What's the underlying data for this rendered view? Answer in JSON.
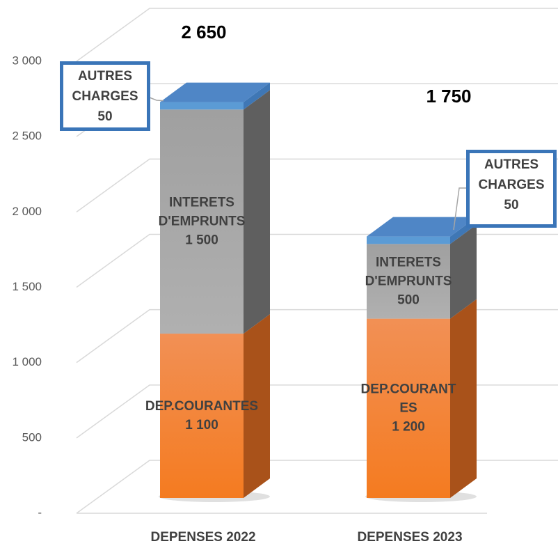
{
  "chart_data": {
    "type": "bar3d_stacked",
    "categories": [
      "DEPENSES 2022",
      "DEPENSES 2023"
    ],
    "series": [
      {
        "name": "DEP.COURANTES",
        "color": "#f47b20",
        "values": [
          1100,
          1200
        ],
        "value_labels": [
          "1 100",
          "1 200"
        ]
      },
      {
        "name": "INTERETS D'EMPRUNTS",
        "color": "#a6a6a6",
        "values": [
          1500,
          500
        ],
        "value_labels": [
          "1 500",
          "500"
        ]
      },
      {
        "name": "AUTRES CHARGES",
        "color": "#5b9bd5",
        "values": [
          50,
          50
        ]
      }
    ],
    "totals": [
      2650,
      1750
    ],
    "total_labels": [
      "2 650",
      "1 750"
    ],
    "ylim": [
      0,
      3000
    ],
    "yticks": [
      {
        "value": 0,
        "label": "-"
      },
      500,
      {
        "value": 1000,
        "label": "1 000"
      },
      {
        "value": 1500,
        "label": "1 500"
      },
      {
        "value": 2000,
        "label": "2 000"
      },
      {
        "value": 2500,
        "label": "2 500"
      },
      {
        "value": 3000,
        "label": "3 000"
      }
    ],
    "grid": true
  }
}
